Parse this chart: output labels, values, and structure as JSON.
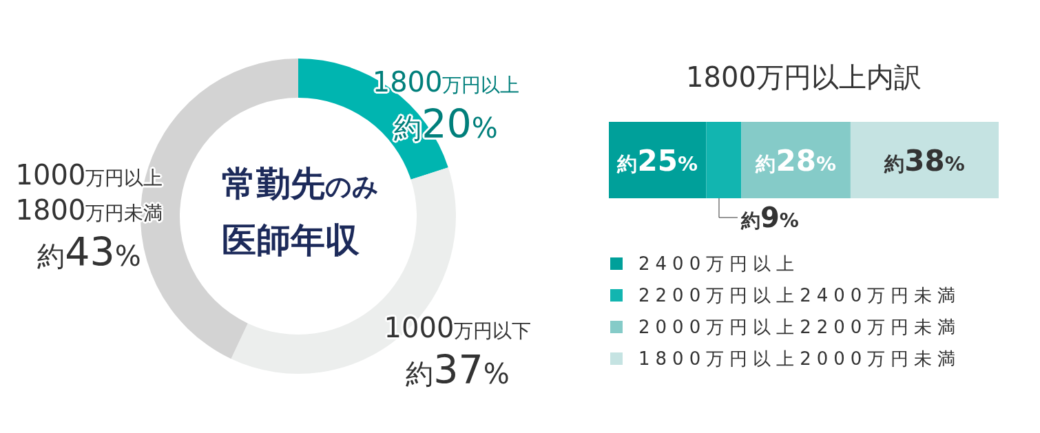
{
  "chart_data": [
    {
      "type": "donut",
      "title": "常勤先のみ医師年収",
      "categories": [
        "1800万円以上",
        "1000万円以下",
        "1000万円以上1800万円未満"
      ],
      "values": [
        20,
        37,
        43
      ],
      "colors": [
        "#00b5b0",
        "#eceeed",
        "#d3d3d3"
      ],
      "value_labels": [
        "約20%",
        "約37%",
        "約43%"
      ]
    },
    {
      "type": "bar",
      "orientation": "horizontal",
      "stacked": true,
      "title": "1800万円以上内訳",
      "categories": [
        null
      ],
      "legend": "bottom",
      "series": [
        {
          "name": "2400万円以上",
          "color": "#00a09a",
          "values": [
            25
          ],
          "value_labels": [
            "約25%"
          ]
        },
        {
          "name": "2200万円以上2400万円未満",
          "color": "#12b5b0",
          "values": [
            9
          ],
          "value_labels": [
            "約9%"
          ]
        },
        {
          "name": "2000万円以上2200万円未満",
          "color": "#85cbc8",
          "values": [
            28
          ],
          "value_labels": [
            "約28%"
          ]
        },
        {
          "name": "1800万円以上2000万円未満",
          "color": "#c5e3e2",
          "values": [
            38
          ],
          "value_labels": [
            "約38%"
          ]
        }
      ]
    }
  ]
}
